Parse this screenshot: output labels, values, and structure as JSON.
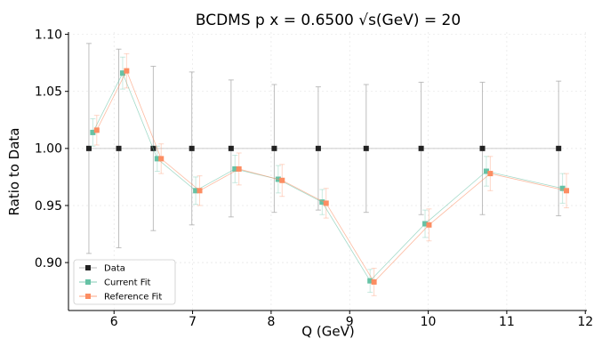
{
  "chart_data": {
    "type": "scatter",
    "title": "BCDMS p x = 0.6500 √s(GeV) = 20",
    "xlabel": "Q (GeV)",
    "ylabel": "Ratio to Data",
    "xlim": [
      5.42,
      12.02
    ],
    "ylim": [
      0.858,
      1.102
    ],
    "xticks": [
      6,
      7,
      8,
      9,
      10,
      11,
      12
    ],
    "yticks": [
      0.9,
      0.95,
      1.0,
      1.05,
      1.1
    ],
    "xtick_labels": [
      "6",
      "7",
      "8",
      "9",
      "10",
      "11",
      "12"
    ],
    "ytick_labels": [
      "0.90",
      "0.95",
      "1.00",
      "1.05",
      "1.10"
    ],
    "grid": true,
    "legend_position": "lower-left",
    "x": [
      5.73,
      6.11,
      6.55,
      7.04,
      7.54,
      8.09,
      8.65,
      9.26,
      9.96,
      10.74,
      11.71
    ],
    "series": [
      {
        "name": "Data",
        "color": "#222222",
        "x_offset": -0.05,
        "values": [
          1.0,
          1.0,
          1.0,
          1.0,
          1.0,
          1.0,
          1.0,
          1.0,
          1.0,
          1.0,
          1.0
        ],
        "errors": [
          0.092,
          0.087,
          0.072,
          0.067,
          0.06,
          0.056,
          0.054,
          0.056,
          0.058,
          0.058,
          0.059
        ]
      },
      {
        "name": "Current Fit",
        "color": "#66c2a5",
        "x_offset": 0.0,
        "values": [
          1.014,
          1.066,
          0.991,
          0.963,
          0.982,
          0.973,
          0.953,
          0.884,
          0.934,
          0.98,
          0.965
        ],
        "errors": [
          0.012,
          0.014,
          0.011,
          0.012,
          0.012,
          0.012,
          0.011,
          0.01,
          0.012,
          0.013,
          0.013
        ]
      },
      {
        "name": "Reference Fit",
        "color": "#fc8d62",
        "x_offset": 0.05,
        "values": [
          1.016,
          1.068,
          0.991,
          0.963,
          0.982,
          0.972,
          0.952,
          0.883,
          0.933,
          0.978,
          0.963
        ],
        "errors": [
          0.013,
          0.015,
          0.013,
          0.013,
          0.014,
          0.014,
          0.013,
          0.012,
          0.014,
          0.015,
          0.015
        ]
      }
    ]
  }
}
